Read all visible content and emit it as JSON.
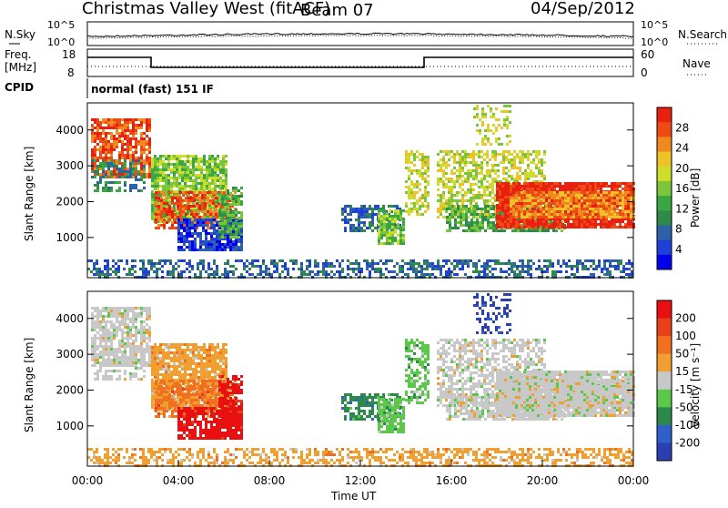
{
  "header": {
    "title": "Christmas Valley West (fitACF)",
    "beam": "Beam 07",
    "date": "04/Sep/2012"
  },
  "top_panels": {
    "nsky": {
      "label": "N.Sky",
      "right_label": "N.Search",
      "ticks_left": [
        "10^5",
        "10^0"
      ],
      "ticks_right": [
        "10^5",
        "10^0"
      ]
    },
    "freq": {
      "label_lines": [
        "Freq.",
        "[MHz]"
      ],
      "right_label": "Nave",
      "ticks_left": [
        "18",
        "8"
      ],
      "ticks_right": [
        "60",
        "0"
      ]
    },
    "cpid": {
      "label": "CPID",
      "value": "normal (fast) 151 IF"
    }
  },
  "chart_data": [
    {
      "type": "heatmap",
      "name": "power",
      "ylabel": "Slant Range [km]",
      "xlabel": "",
      "y_ticks": [
        "4000",
        "3000",
        "2000",
        "1000"
      ],
      "colorbar": {
        "label": "Power [dB]",
        "ticks": [
          "28",
          "24",
          "20",
          "16",
          "12",
          "8",
          "4"
        ],
        "colors": [
          "#0000ee",
          "#1e40d8",
          "#2e62a8",
          "#2f8a4a",
          "#39a844",
          "#7cc43a",
          "#cddd2a",
          "#f0c22a",
          "#f08a20",
          "#ee4a16",
          "#e82010"
        ]
      }
    },
    {
      "type": "heatmap",
      "name": "velocity",
      "ylabel": "Slant Range [km]",
      "xlabel": "Time UT",
      "x_ticks": [
        "00:00",
        "04:00",
        "08:00",
        "12:00",
        "16:00",
        "20:00",
        "00:00"
      ],
      "y_ticks": [
        "4000",
        "3000",
        "2000",
        "1000"
      ],
      "colorbar": {
        "label": "Velocity [m s⁻¹]",
        "ticks": [
          "200",
          "100",
          "50",
          "15",
          "-15",
          "-50",
          "-100",
          "-200"
        ],
        "colors": [
          "#2a3fb0",
          "#2f5fc8",
          "#2e8a4a",
          "#5cc84a",
          "#c8c8c8",
          "#f0a030",
          "#f07020",
          "#e84018",
          "#e81010"
        ]
      }
    }
  ]
}
